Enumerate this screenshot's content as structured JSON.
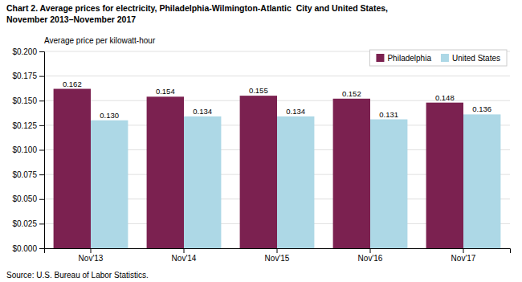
{
  "chart_data": {
    "type": "bar",
    "title": [
      "Chart 2. Average prices for electricity, Philadelphia-Wilmington-Atlantic  City and United States,",
      "November 2013–November 2017"
    ],
    "ylabel": "Average price per kilowatt-hour",
    "source": "Source: U.S. Bureau of Labor Statistics.",
    "categories": [
      "Nov'13",
      "Nov'14",
      "Nov'15",
      "Nov'16",
      "Nov'17"
    ],
    "series": [
      {
        "name": "Philadelphia",
        "color": "#7B2150",
        "values": [
          0.162,
          0.154,
          0.155,
          0.152,
          0.148
        ],
        "value_labels": [
          "0.162",
          "0.154",
          "0.155",
          "0.152",
          "0.148"
        ]
      },
      {
        "name": "United States",
        "color": "#ADD8E6",
        "values": [
          0.13,
          0.134,
          0.134,
          0.131,
          0.136
        ],
        "value_labels": [
          "0.130",
          "0.134",
          "0.134",
          "0.131",
          "0.136"
        ]
      }
    ],
    "ylim": [
      0,
      0.2
    ],
    "yticks": [
      {
        "value": 0.0,
        "label": "$0.000"
      },
      {
        "value": 0.025,
        "label": "$0.025"
      },
      {
        "value": 0.05,
        "label": "$0.050"
      },
      {
        "value": 0.075,
        "label": "$0.075"
      },
      {
        "value": 0.1,
        "label": "$0.100"
      },
      {
        "value": 0.125,
        "label": "$0.125"
      },
      {
        "value": 0.15,
        "label": "$0.150"
      },
      {
        "value": 0.175,
        "label": "$0.175"
      },
      {
        "value": 0.2,
        "label": "$0.200"
      }
    ],
    "grid": true,
    "legend": "upper right",
    "data_labels": true
  }
}
